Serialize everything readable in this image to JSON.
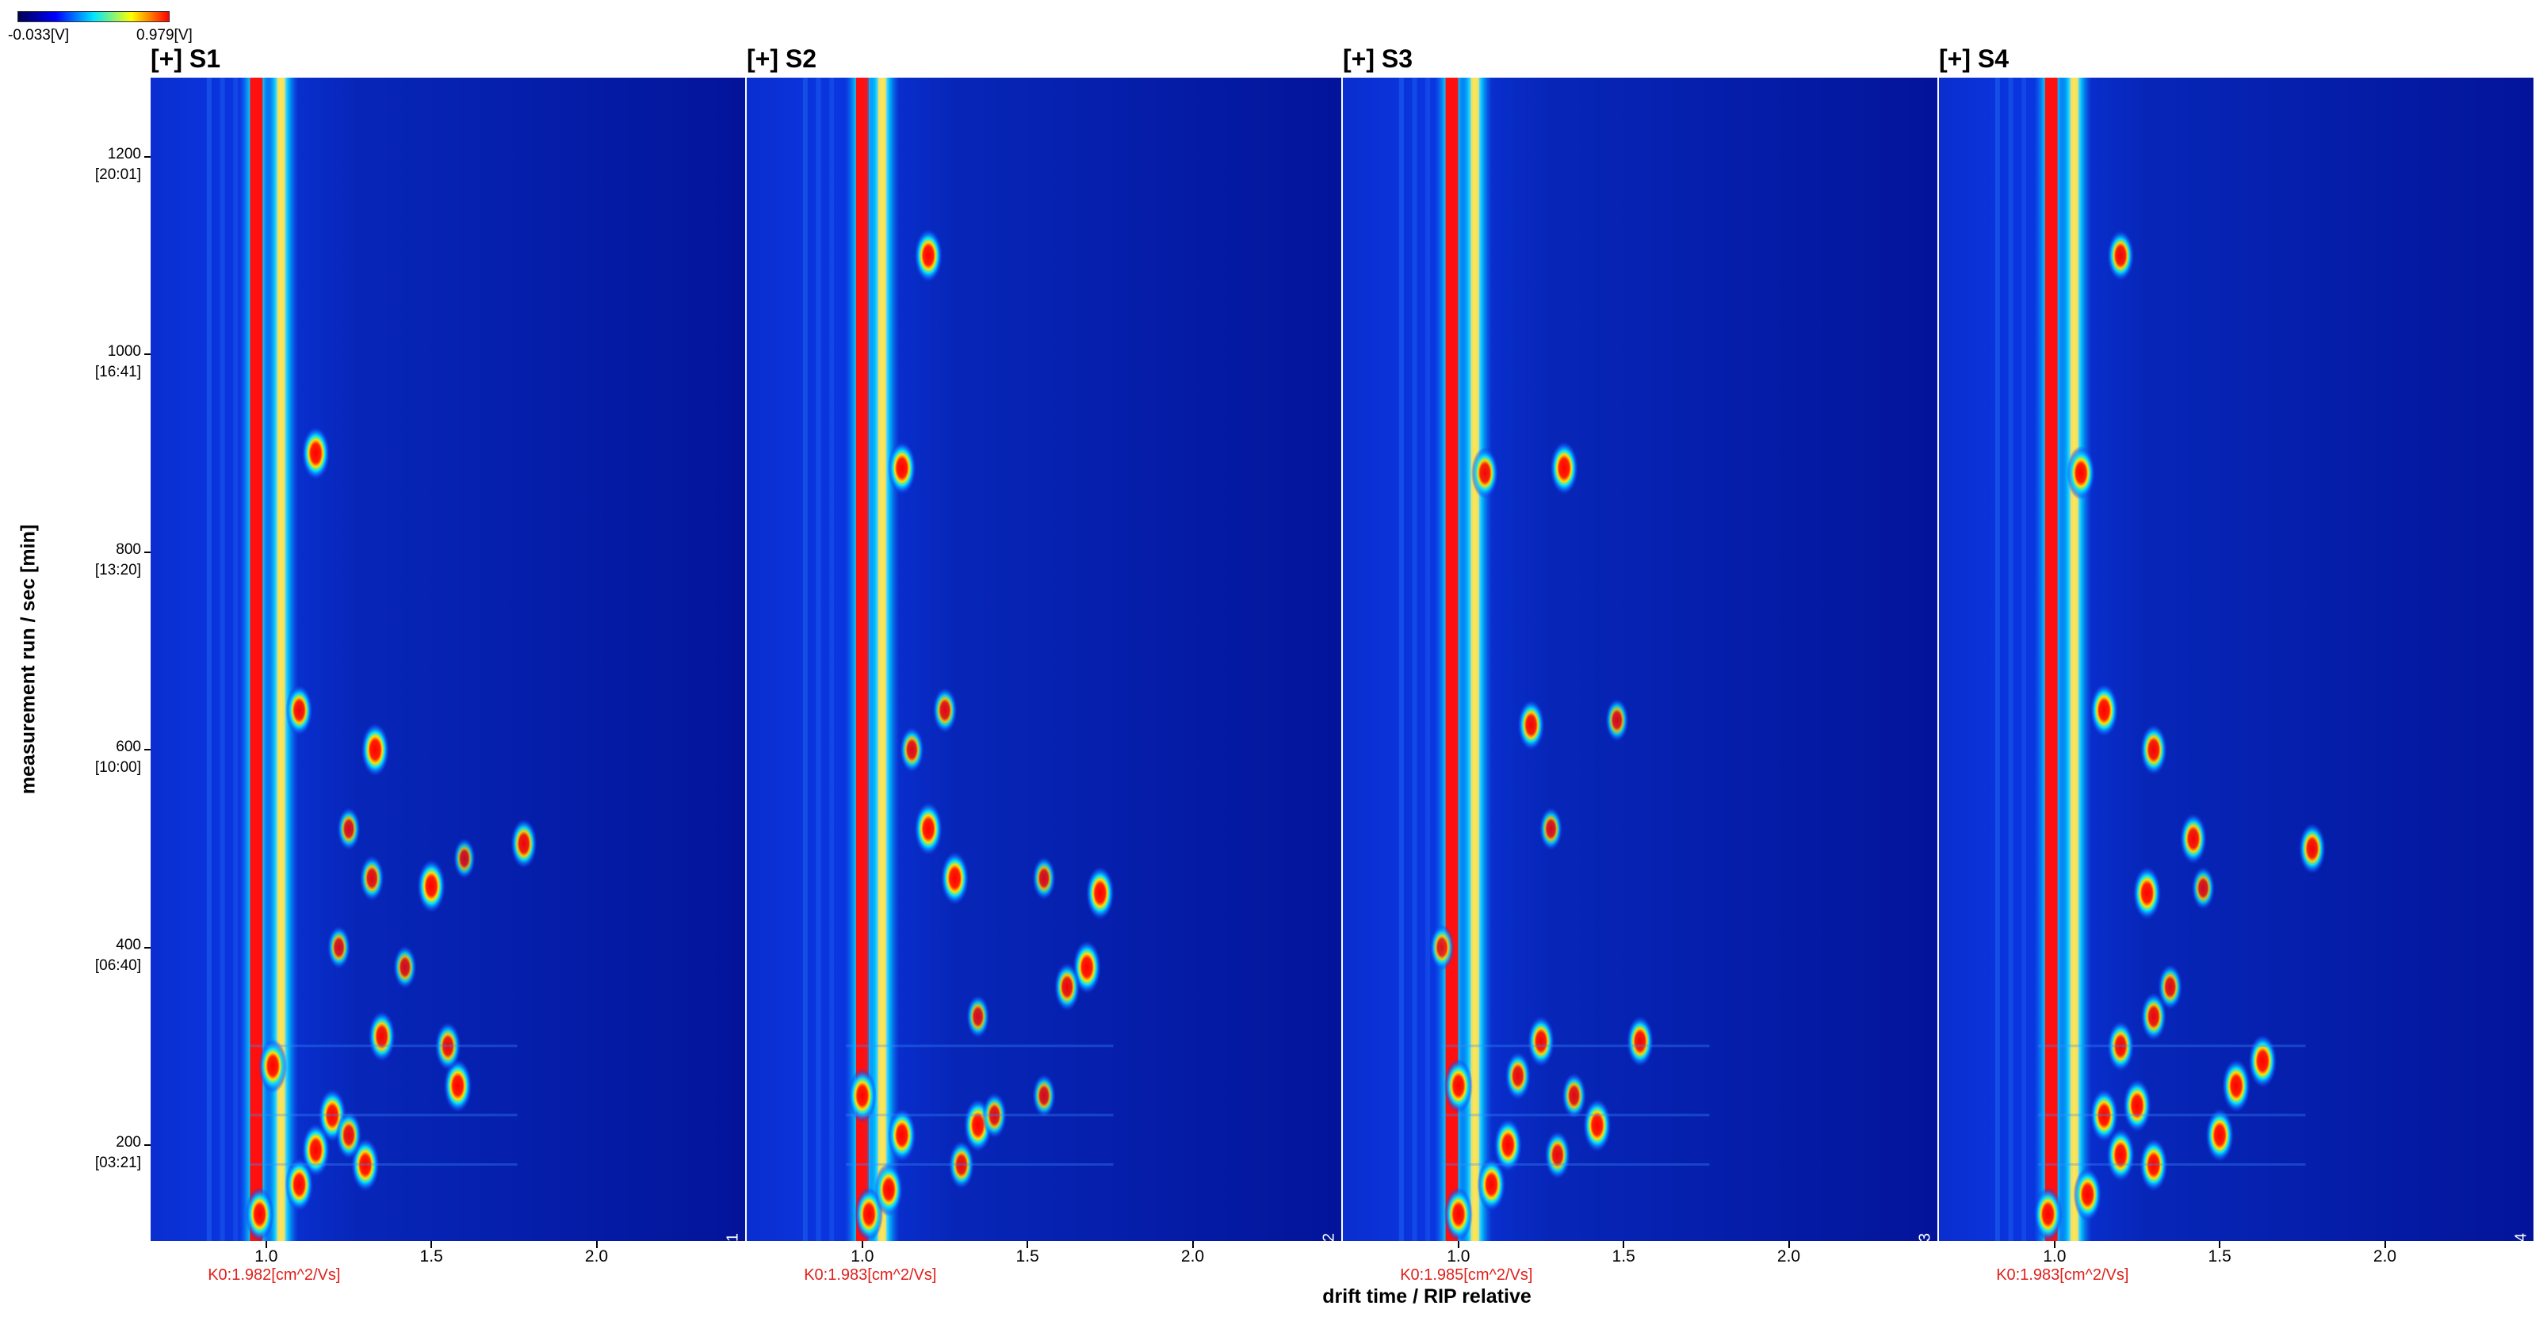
{
  "colorbar": {
    "min_label": "-0.033[V]",
    "max_label": "0.979[V]",
    "colors": [
      "#000050",
      "#0000ff",
      "#00e5ff",
      "#ffff00",
      "#ff0000"
    ]
  },
  "chart_data": {
    "type": "heatmap",
    "xlabel": "drift time / RIP relative",
    "ylabel": "measurement run / sec [min]",
    "xlim": [
      0.65,
      2.45
    ],
    "ylim": [
      103,
      1280
    ],
    "x_ticks": [
      "1.0",
      "1.5",
      "2.0"
    ],
    "x_tick_values": [
      1.0,
      1.5,
      2.0
    ],
    "y_ticks": [
      {
        "value": 200,
        "label": "200",
        "time": "[03:21]"
      },
      {
        "value": 400,
        "label": "400",
        "time": "[06:40]"
      },
      {
        "value": 600,
        "label": "600",
        "time": "[10:00]"
      },
      {
        "value": 800,
        "label": "800",
        "time": "[13:20]"
      },
      {
        "value": 1000,
        "label": "1000",
        "time": "[16:41]"
      },
      {
        "value": 1200,
        "label": "1200",
        "time": "[20:01]"
      }
    ],
    "panels": [
      {
        "title": "[+] S1",
        "tag": "[+]S1",
        "k0": "K0:1.982[cm^2/Vs]",
        "rip_lines": [
          0.97,
          1.045
        ],
        "spots": [
          [
            1.15,
            900,
            1
          ],
          [
            1.1,
            640,
            0.9
          ],
          [
            1.33,
            600,
            1
          ],
          [
            1.5,
            462,
            1
          ],
          [
            1.78,
            505,
            0.85
          ],
          [
            1.2,
            230,
            1
          ],
          [
            1.15,
            195,
            1
          ],
          [
            1.3,
            180,
            1
          ],
          [
            1.58,
            260,
            1
          ],
          [
            1.35,
            310,
            0.9
          ],
          [
            1.02,
            280,
            1
          ],
          [
            0.98,
            130,
            1
          ],
          [
            1.1,
            160,
            1
          ],
          [
            1.25,
            210,
            0.8
          ],
          [
            1.22,
            400,
            0.6
          ],
          [
            1.32,
            470,
            0.7
          ],
          [
            1.42,
            380,
            0.6
          ],
          [
            1.55,
            300,
            0.8
          ],
          [
            1.6,
            490,
            0.5
          ],
          [
            1.25,
            520,
            0.6
          ]
        ]
      },
      {
        "title": "[+] S2",
        "tag": "[+]S2",
        "k0": "K0:1.983[cm^2/Vs]",
        "rip_lines": [
          1.0,
          1.06
        ],
        "spots": [
          [
            1.2,
            1100,
            1
          ],
          [
            1.12,
            885,
            1
          ],
          [
            1.28,
            470,
            1
          ],
          [
            1.72,
            455,
            1
          ],
          [
            1.68,
            380,
            1
          ],
          [
            1.2,
            520,
            1
          ],
          [
            1.12,
            210,
            1
          ],
          [
            1.35,
            220,
            1
          ],
          [
            1.3,
            180,
            0.8
          ],
          [
            1.62,
            360,
            0.8
          ],
          [
            1.0,
            250,
            1
          ],
          [
            1.02,
            130,
            1
          ],
          [
            1.08,
            155,
            1
          ],
          [
            1.55,
            470,
            0.6
          ],
          [
            1.25,
            640,
            0.7
          ],
          [
            1.15,
            600,
            0.7
          ],
          [
            1.4,
            230,
            0.7
          ],
          [
            1.55,
            250,
            0.6
          ],
          [
            1.35,
            330,
            0.6
          ]
        ]
      },
      {
        "title": "[+] S3",
        "tag": "[+]S3",
        "k0": "K0:1.985[cm^2/Vs]",
        "rip_lines": [
          0.98,
          1.05
        ],
        "spots": [
          [
            1.32,
            885,
            1
          ],
          [
            1.08,
            880,
            0.9
          ],
          [
            1.22,
            625,
            0.9
          ],
          [
            1.42,
            220,
            1
          ],
          [
            1.55,
            305,
            0.9
          ],
          [
            1.25,
            305,
            0.9
          ],
          [
            1.0,
            260,
            1
          ],
          [
            1.0,
            130,
            1
          ],
          [
            1.1,
            160,
            1
          ],
          [
            1.15,
            200,
            1
          ],
          [
            1.3,
            190,
            0.8
          ],
          [
            0.95,
            400,
            0.7
          ],
          [
            1.28,
            520,
            0.6
          ],
          [
            1.48,
            630,
            0.6
          ],
          [
            1.18,
            270,
            0.8
          ],
          [
            1.35,
            250,
            0.7
          ]
        ]
      },
      {
        "title": "[+] S4",
        "tag": "[+]S4",
        "k0": "K0:1.983[cm^2/Vs]",
        "rip_lines": [
          0.99,
          1.06
        ],
        "spots": [
          [
            1.2,
            1100,
            0.9
          ],
          [
            1.08,
            880,
            1
          ],
          [
            1.15,
            640,
            1
          ],
          [
            1.3,
            600,
            0.9
          ],
          [
            1.28,
            455,
            1
          ],
          [
            1.42,
            510,
            0.9
          ],
          [
            1.78,
            500,
            0.9
          ],
          [
            1.15,
            230,
            1
          ],
          [
            1.2,
            190,
            1
          ],
          [
            1.25,
            240,
            1
          ],
          [
            1.3,
            180,
            1
          ],
          [
            1.5,
            210,
            1
          ],
          [
            1.55,
            260,
            1
          ],
          [
            1.63,
            285,
            1
          ],
          [
            0.98,
            130,
            1
          ],
          [
            1.1,
            150,
            1
          ],
          [
            1.2,
            300,
            0.9
          ],
          [
            1.3,
            330,
            0.8
          ],
          [
            1.45,
            460,
            0.6
          ],
          [
            1.35,
            360,
            0.7
          ]
        ]
      }
    ]
  }
}
